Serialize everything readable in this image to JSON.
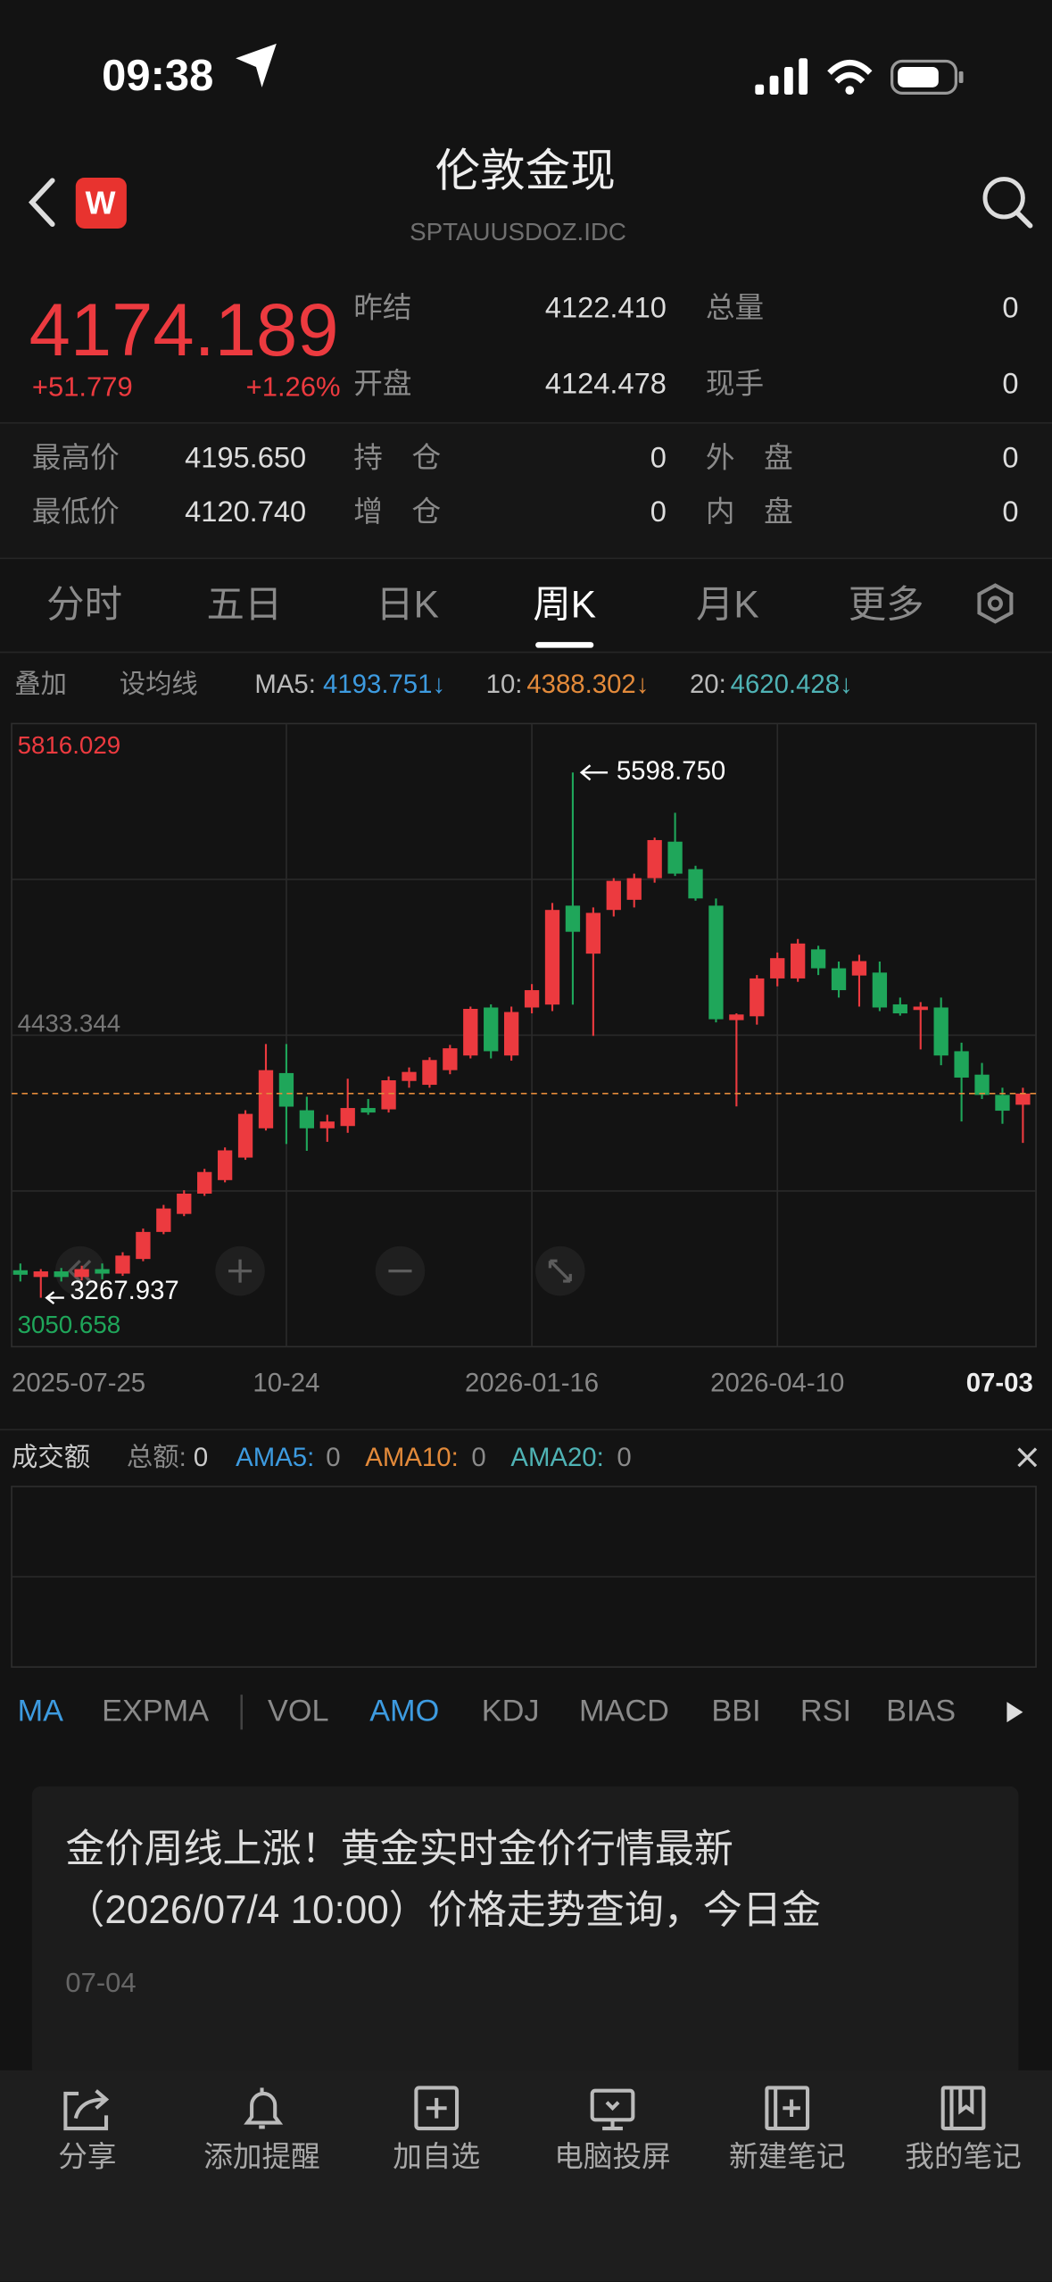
{
  "status": {
    "time": "09:38"
  },
  "header": {
    "logo": "W",
    "title": "伦敦金现",
    "code": "SPTAUUSDOZ.IDC"
  },
  "quote": {
    "price": "4174.189",
    "change": "+51.779",
    "change_pct": "+1.26%",
    "fields": [
      [
        "昨结",
        "4122.410"
      ],
      [
        "总量",
        "0"
      ],
      [
        "开盘",
        "4124.478"
      ],
      [
        "现手",
        "0"
      ],
      [
        "最高价",
        "4195.650"
      ],
      [
        "持　仓",
        "0"
      ],
      [
        "外　盘",
        "0"
      ],
      [
        "最低价",
        "4120.740"
      ],
      [
        "增　仓",
        "0"
      ],
      [
        "内　盘",
        "0"
      ]
    ]
  },
  "tabs": [
    "分时",
    "五日",
    "日K",
    "周K",
    "月K",
    "更多"
  ],
  "toolbar": {
    "overlay": "叠加",
    "set_ma": "设均线",
    "ma": [
      {
        "label": "MA5:",
        "value": "4193.751↓"
      },
      {
        "label": "10:",
        "value": "4388.302↓"
      },
      {
        "label": "20:",
        "value": "4620.428↓"
      }
    ]
  },
  "chart": {
    "type": "candlestick",
    "ylim": [
      3050.658,
      5816.029
    ],
    "yticks": [
      5816.029,
      4433.344,
      3050.658
    ],
    "high_label": "5598.750",
    "low_label": "3267.937",
    "categories": [
      "2025-07-25",
      null,
      null,
      null,
      null,
      null,
      null,
      null,
      null,
      null,
      null,
      null,
      null,
      "10-24",
      null,
      null,
      null,
      null,
      null,
      null,
      null,
      null,
      null,
      null,
      null,
      "2026-01-16",
      null,
      null,
      null,
      null,
      null,
      null,
      null,
      null,
      null,
      null,
      null,
      "2026-04-10",
      null,
      null,
      null,
      null,
      null,
      null,
      null,
      null,
      null,
      null,
      null,
      "07-03"
    ],
    "open": [
      3390,
      3360,
      3385,
      3360,
      3395,
      3375,
      3440,
      3560,
      3640,
      3730,
      3790,
      3890,
      4020,
      4265,
      4100,
      4020,
      4030,
      4110,
      4104,
      4230,
      4213,
      4278,
      4343,
      4556,
      4343,
      4556,
      4569,
      5008,
      4795,
      4989,
      5034,
      5130,
      5292,
      5170,
      5008,
      4500,
      4517,
      4685,
      4685,
      4814,
      4730,
      4698,
      4711,
      4570,
      4545,
      4556,
      4362,
      4258,
      4168,
      4124.478
    ],
    "high": [
      3420,
      3395,
      3400,
      3410,
      3420,
      3470,
      3575,
      3680,
      3745,
      3840,
      3935,
      4100,
      4394,
      4394,
      4160,
      4080,
      4240,
      4150,
      4250,
      4290,
      4335,
      4390,
      4560,
      4570,
      4560,
      4660,
      5020,
      5598.75,
      5000,
      5130,
      5150,
      5310,
      5420,
      5185,
      5040,
      4530,
      4700,
      4800,
      4860,
      4830,
      4760,
      4790,
      4760,
      4600,
      4580,
      4600,
      4400,
      4310,
      4200,
      4200
    ],
    "low": [
      3340,
      3267.937,
      3340,
      3345,
      3350,
      3365,
      3430,
      3550,
      3630,
      3720,
      3780,
      3880,
      4010,
      3950,
      3920,
      3960,
      4000,
      4080,
      4090,
      4200,
      4200,
      4260,
      4330,
      4330,
      4320,
      4530,
      4540,
      4569,
      4430,
      4960,
      5000,
      5110,
      5140,
      5030,
      4490,
      4117,
      4480,
      4650,
      4670,
      4700,
      4600,
      4560,
      4540,
      4520,
      4370,
      4300,
      4050,
      4150,
      4040,
      3955
    ],
    "close": [
      3370,
      3385,
      3360,
      3395,
      3375,
      3455,
      3560,
      3664,
      3730,
      3826,
      3922,
      4084,
      4278,
      4116,
      4020,
      4050,
      4110,
      4090,
      4233,
      4270,
      4323,
      4375,
      4550,
      4362,
      4536,
      4633,
      4989,
      4892,
      4976,
      5118,
      5130,
      5299,
      5150,
      5040,
      4504,
      4525,
      4685,
      4775,
      4840,
      4730,
      4633,
      4762,
      4556,
      4530,
      4560,
      4343,
      4245,
      4168,
      4098,
      4174.189
    ],
    "up_color": "#ec3a3f",
    "down_color": "#1fa65a"
  },
  "volume": {
    "title": "成交额",
    "total_label": "总额:",
    "total": "0",
    "ama": [
      {
        "label": "AMA5:",
        "value": "0"
      },
      {
        "label": "AMA10:",
        "value": "0"
      },
      {
        "label": "AMA20:",
        "value": "0"
      }
    ]
  },
  "indicators": [
    "MA",
    "EXPMA",
    "VOL",
    "AMO",
    "KDJ",
    "MACD",
    "BBI",
    "RSI",
    "BIAS"
  ],
  "news": {
    "title": "金价周线上涨！黄金实时金价行情最新（2026/07/4 10:00）价格走势查询，今日金",
    "date": "07-04"
  },
  "bottom_bar": [
    "分享",
    "添加提醒",
    "加自选",
    "电脑投屏",
    "新建笔记",
    "我的笔记"
  ]
}
